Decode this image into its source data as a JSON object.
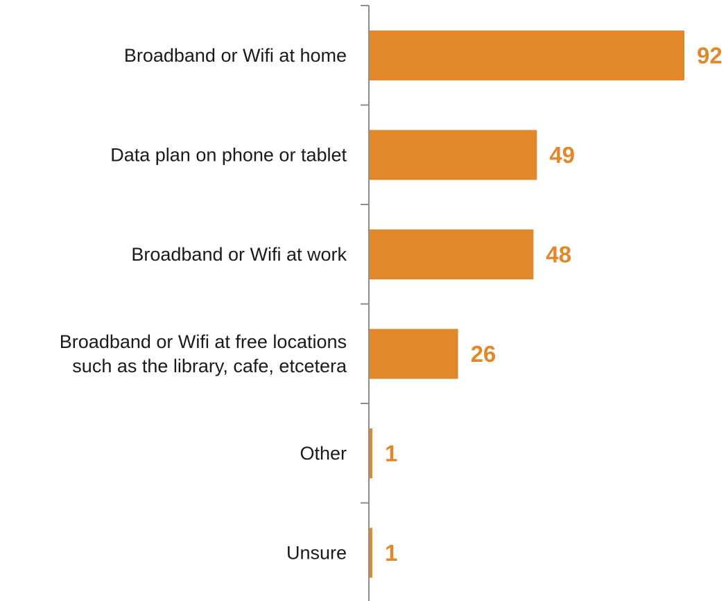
{
  "chart_data": {
    "type": "bar",
    "orientation": "horizontal",
    "categories": [
      [
        "Broadband or Wifi at home"
      ],
      [
        "Data plan on phone or tablet"
      ],
      [
        "Broadband or Wifi at work"
      ],
      [
        "Broadband or Wifi at free locations",
        "such as the library, cafe, etcetera"
      ],
      [
        "Other"
      ],
      [
        "Unsure"
      ]
    ],
    "values": [
      92,
      49,
      48,
      26,
      1,
      1
    ],
    "xlim": [
      0,
      92
    ],
    "data_labels": true,
    "grid": false,
    "legend": "none",
    "bar_color": "#e2872a",
    "axis_color": "#8c8c8c",
    "label_color": "#1a1a1a"
  }
}
